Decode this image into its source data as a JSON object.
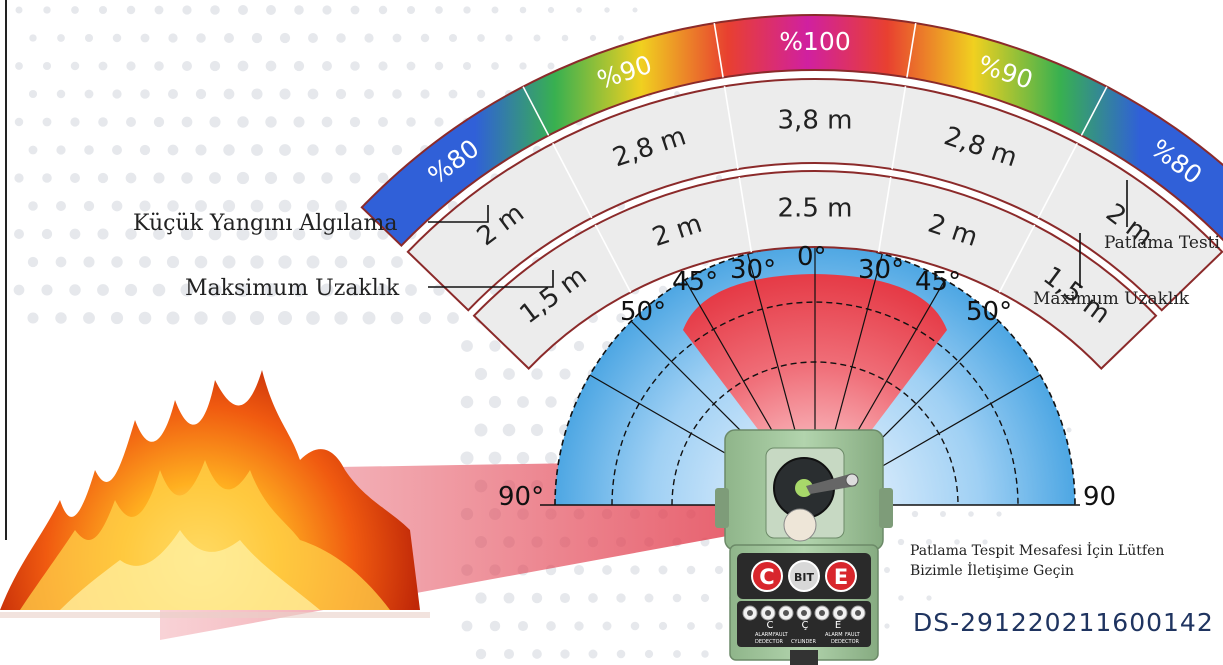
{
  "arcs": {
    "percent": [
      "%80",
      "%90",
      "%100",
      "%90",
      "%80"
    ],
    "outer": [
      "2 m",
      "2,8 m",
      "3,8 m",
      "2,8 m",
      "2 m"
    ],
    "inner": [
      "1,5 m",
      "2 m",
      "2.5 m",
      "2 m",
      "1,5 m"
    ]
  },
  "angles": {
    "left": [
      "90°",
      "50°",
      "45°",
      "30°"
    ],
    "center": "0°",
    "right": [
      "30°",
      "45°",
      "50°",
      "90"
    ]
  },
  "callouts": {
    "small_fire": "Küçük Yangını Algılama",
    "max_distance_left": "Maksimum Uzaklık",
    "explosion_test": "Patlama Testi",
    "max_distance_right": "Maximum Uzaklık"
  },
  "contact_note": [
    "Patlama Tespit Mesafesi İçin Lütfen",
    "Bizimle İletişime Geçin"
  ],
  "model_code": "DS-291220211600142",
  "device": {
    "buttons": [
      "C",
      "BIT",
      "E"
    ],
    "terminal_letters": [
      "C",
      "Ç",
      "E"
    ],
    "terminal_labels_top": [
      "ALARM",
      "FAULT",
      "CYLINDER",
      "ALARM",
      "FAULT"
    ],
    "terminal_labels_bottom": [
      "DEDECTOR",
      "DEDECTOR"
    ]
  },
  "colors": {
    "arc_border": "#8b2a2a",
    "cone_red": "#e8404a",
    "cone_blue": "#3aa0e0",
    "device_green": "#9fc39a"
  }
}
